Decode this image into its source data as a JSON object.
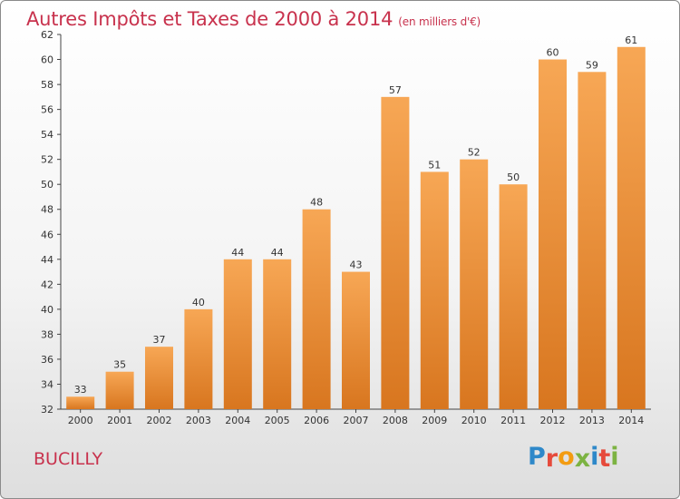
{
  "header": {
    "title": "Autres Impôts et Taxes de 2000 à 2014",
    "subtitle": "(en milliers d'€)"
  },
  "footer": {
    "place": "BUCILLY",
    "logo": "Proxiti"
  },
  "colors": {
    "title": "#c8324d",
    "bar_light": "#f7a755",
    "bar_dark": "#d8761f",
    "logo_letters": [
      "#2e88c9",
      "#e64a3b",
      "#f39c12",
      "#7cb342",
      "#2e88c9",
      "#e64a3b",
      "#7cb342"
    ]
  },
  "chart_data": {
    "type": "bar",
    "title": "Autres Impôts et Taxes de 2000 à 2014",
    "subtitle": "(en milliers d'€)",
    "categories": [
      "2000",
      "2001",
      "2002",
      "2003",
      "2004",
      "2005",
      "2006",
      "2007",
      "2008",
      "2009",
      "2010",
      "2011",
      "2012",
      "2013",
      "2014"
    ],
    "values": [
      33,
      35,
      37,
      40,
      44,
      44,
      48,
      43,
      57,
      51,
      52,
      50,
      60,
      59,
      61
    ],
    "ylim": [
      32,
      62
    ],
    "yticks": [
      32,
      34,
      36,
      38,
      40,
      42,
      44,
      46,
      48,
      50,
      52,
      54,
      56,
      58,
      60,
      62
    ],
    "grid": false,
    "data_labels": true
  }
}
